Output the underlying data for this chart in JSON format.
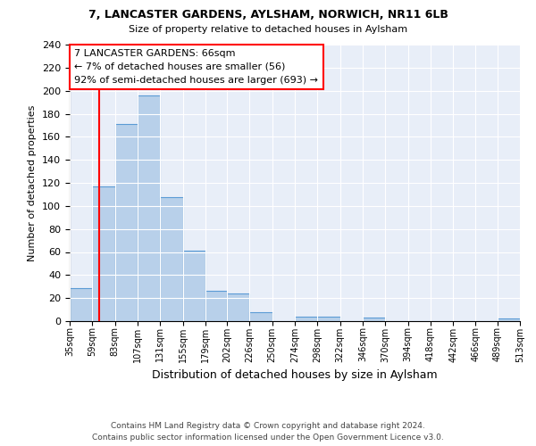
{
  "title1": "7, LANCASTER GARDENS, AYLSHAM, NORWICH, NR11 6LB",
  "title2": "Size of property relative to detached houses in Aylsham",
  "xlabel": "Distribution of detached houses by size in Aylsham",
  "ylabel": "Number of detached properties",
  "footnote1": "Contains HM Land Registry data © Crown copyright and database right 2024.",
  "footnote2": "Contains public sector information licensed under the Open Government Licence v3.0.",
  "bin_edges": [
    35,
    59,
    83,
    107,
    131,
    155,
    179,
    202,
    226,
    250,
    274,
    298,
    322,
    346,
    370,
    394,
    418,
    442,
    466,
    489,
    513
  ],
  "bar_heights": [
    29,
    117,
    171,
    196,
    108,
    61,
    26,
    24,
    8,
    0,
    4,
    4,
    0,
    3,
    0,
    0,
    0,
    0,
    0,
    2
  ],
  "bar_color": "#b8d0ea",
  "bar_edge_color": "#5b9bd5",
  "background_color": "#e8eef8",
  "red_line_x": 66,
  "annotation_text": "7 LANCASTER GARDENS: 66sqm\n← 7% of detached houses are smaller (56)\n92% of semi-detached houses are larger (693) →",
  "ylim": [
    0,
    240
  ],
  "yticks": [
    0,
    20,
    40,
    60,
    80,
    100,
    120,
    140,
    160,
    180,
    200,
    220,
    240
  ],
  "tick_labels": [
    "35sqm",
    "59sqm",
    "83sqm",
    "107sqm",
    "131sqm",
    "155sqm",
    "179sqm",
    "202sqm",
    "226sqm",
    "250sqm",
    "274sqm",
    "298sqm",
    "322sqm",
    "346sqm",
    "370sqm",
    "394sqm",
    "418sqm",
    "442sqm",
    "466sqm",
    "489sqm",
    "513sqm"
  ]
}
